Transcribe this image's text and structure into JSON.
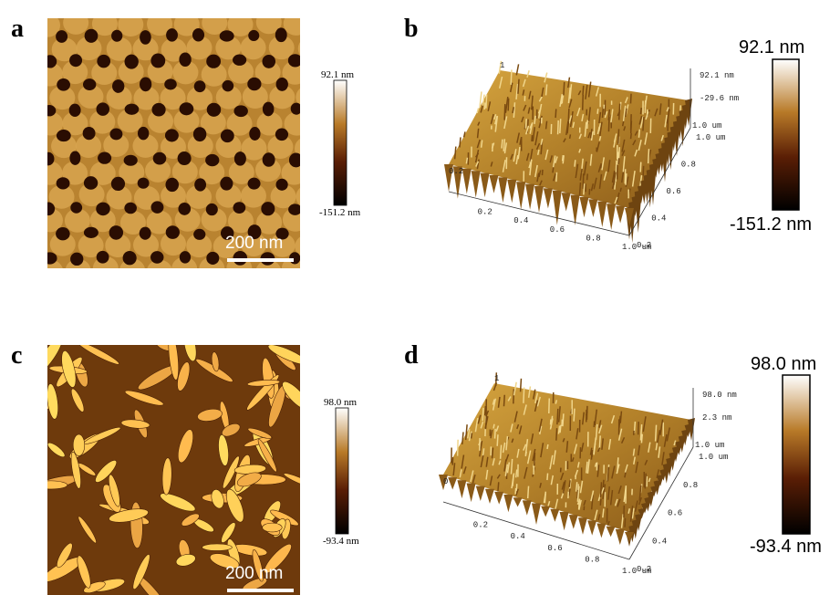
{
  "panels": [
    {
      "label": "a",
      "scale_bar": "200 nm",
      "colorbar": {
        "max": "92.1 nm",
        "min": "-151.2 nm"
      }
    },
    {
      "label": "b",
      "colorbar": {
        "max": "92.1 nm",
        "min": "-151.2 nm"
      },
      "z_labels": [
        "92.1 nm",
        "-29.6 nm",
        "1.0 um"
      ],
      "y_ticks": [
        "1.0 um",
        "0.8",
        "0.6",
        "0.4",
        "0.2"
      ],
      "x_ticks": [
        "0.2",
        "0.4",
        "0.6",
        "0.8",
        "1.0 um"
      ],
      "corner_labels": [
        "1",
        "0.2"
      ]
    },
    {
      "label": "c",
      "scale_bar": "200 nm",
      "colorbar": {
        "max": "98.0 nm",
        "min": "-93.4 nm"
      }
    },
    {
      "label": "d",
      "colorbar": {
        "max": "98.0 nm",
        "min": "-93.4 nm"
      },
      "z_labels": [
        "98.0 nm",
        "2.3 nm",
        "1.0 um"
      ],
      "y_ticks": [
        "1.0 um",
        "0.8",
        "0.6",
        "0.4",
        "0.2"
      ],
      "x_ticks": [
        "0.2",
        "0.4",
        "0.6",
        "0.8",
        "1.0 um"
      ],
      "corner_labels": [
        "1",
        "0"
      ]
    }
  ]
}
